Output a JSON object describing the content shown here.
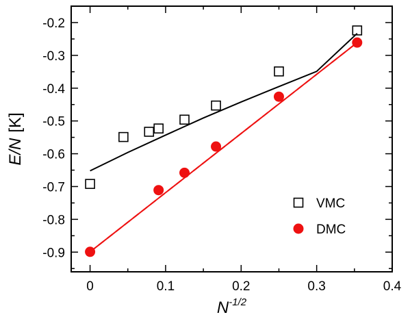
{
  "chart_data": {
    "type": "scatter",
    "xlabel_base": "N",
    "xlabel_exponent": "-1/2",
    "ylabel_italic": "E/N",
    "ylabel_unit": "[K]",
    "xlim": [
      -0.025,
      0.4
    ],
    "ylim": [
      -0.96,
      -0.15
    ],
    "x_ticks": [
      0,
      0.1,
      0.2,
      0.3,
      0.4
    ],
    "x_tick_labels": [
      "0",
      "0.1",
      "0.2",
      "0.3",
      "0.4"
    ],
    "y_ticks": [
      -0.9,
      -0.8,
      -0.7,
      -0.6,
      -0.5,
      -0.4,
      -0.3,
      -0.2
    ],
    "y_tick_labels": [
      "-0.9",
      "-0.8",
      "-0.7",
      "-0.6",
      "-0.5",
      "-0.4",
      "-0.3",
      "-0.2"
    ],
    "grid": false,
    "legend_position": "bottom-right",
    "series": [
      {
        "name": "VMC",
        "marker": "open-square",
        "color": "#000000",
        "x": [
          0,
          0.0442,
          0.0781,
          0.0907,
          0.125,
          0.1667,
          0.25,
          0.3536
        ],
        "y": [
          -0.692,
          -0.549,
          -0.533,
          -0.523,
          -0.496,
          -0.453,
          -0.349,
          -0.224
        ]
      },
      {
        "name": "DMC",
        "marker": "filled-circle",
        "color": "#ee1111",
        "x": [
          0,
          0.0907,
          0.125,
          0.1667,
          0.25,
          0.3536
        ],
        "y": [
          -0.899,
          -0.711,
          -0.658,
          -0.578,
          -0.426,
          -0.261
        ]
      }
    ],
    "fits": [
      {
        "series": "VMC",
        "style": "solid",
        "color": "#000000",
        "x": [
          0,
          0.05,
          0.1,
          0.15,
          0.2,
          0.25,
          0.3,
          0.3536
        ],
        "y": [
          -0.652,
          -0.596,
          -0.543,
          -0.491,
          -0.442,
          -0.395,
          -0.349,
          -0.233
        ]
      },
      {
        "series": "DMC",
        "style": "solid",
        "color": "#ee1111",
        "x": [
          0,
          0.3536
        ],
        "y": [
          -0.899,
          -0.261
        ]
      },
      {
        "series": "DMC",
        "style": "dashed",
        "color": "#ee1111",
        "x": [
          0,
          0.3536
        ],
        "y": [
          -0.899,
          -0.261
        ]
      }
    ]
  }
}
